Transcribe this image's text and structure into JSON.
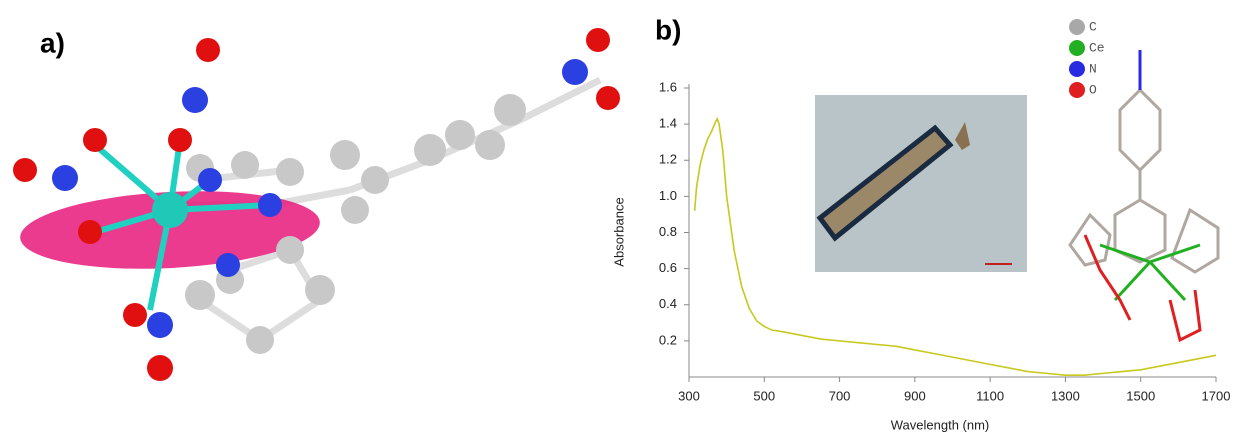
{
  "panel_labels": [
    "a)",
    "b)"
  ],
  "atom_legend": [
    {
      "name": "C",
      "color": "#a8a8a8"
    },
    {
      "name": "Ce",
      "color": "#22b022"
    },
    {
      "name": "N",
      "color": "#2a2ae0"
    },
    {
      "name": "O",
      "color": "#e02020"
    }
  ],
  "chart_data": {
    "type": "line",
    "x_label": "Wavelength (nm)",
    "y_label": "Absorbance",
    "x": [
      315,
      320,
      330,
      340,
      350,
      360,
      370,
      375,
      380,
      390,
      400,
      420,
      440,
      460,
      480,
      500,
      520,
      550,
      600,
      650,
      700,
      750,
      800,
      850,
      900,
      950,
      1000,
      1050,
      1100,
      1150,
      1200,
      1250,
      1300,
      1350,
      1400,
      1450,
      1500,
      1550,
      1600,
      1650,
      1700
    ],
    "series": [
      {
        "name": "Absorbance",
        "color": "#c8c81e",
        "values": [
          0.92,
          1.05,
          1.18,
          1.26,
          1.32,
          1.36,
          1.41,
          1.43,
          1.4,
          1.25,
          1.0,
          0.7,
          0.5,
          0.38,
          0.31,
          0.28,
          0.26,
          0.25,
          0.23,
          0.21,
          0.2,
          0.19,
          0.18,
          0.17,
          0.15,
          0.13,
          0.11,
          0.09,
          0.07,
          0.05,
          0.03,
          0.02,
          0.01,
          0.01,
          0.02,
          0.03,
          0.04,
          0.06,
          0.08,
          0.1,
          0.12
        ]
      }
    ],
    "xlim": [
      300,
      1700
    ],
    "xticks": [
      300,
      500,
      700,
      900,
      1100,
      1300,
      1500,
      1700
    ],
    "ylim": [
      0,
      1.6
    ],
    "yticks": [
      0.2,
      0.4,
      0.6,
      0.8,
      {
        "value": 1,
        "label": "1.0"
      },
      1.2,
      1.4,
      1.6
    ]
  }
}
